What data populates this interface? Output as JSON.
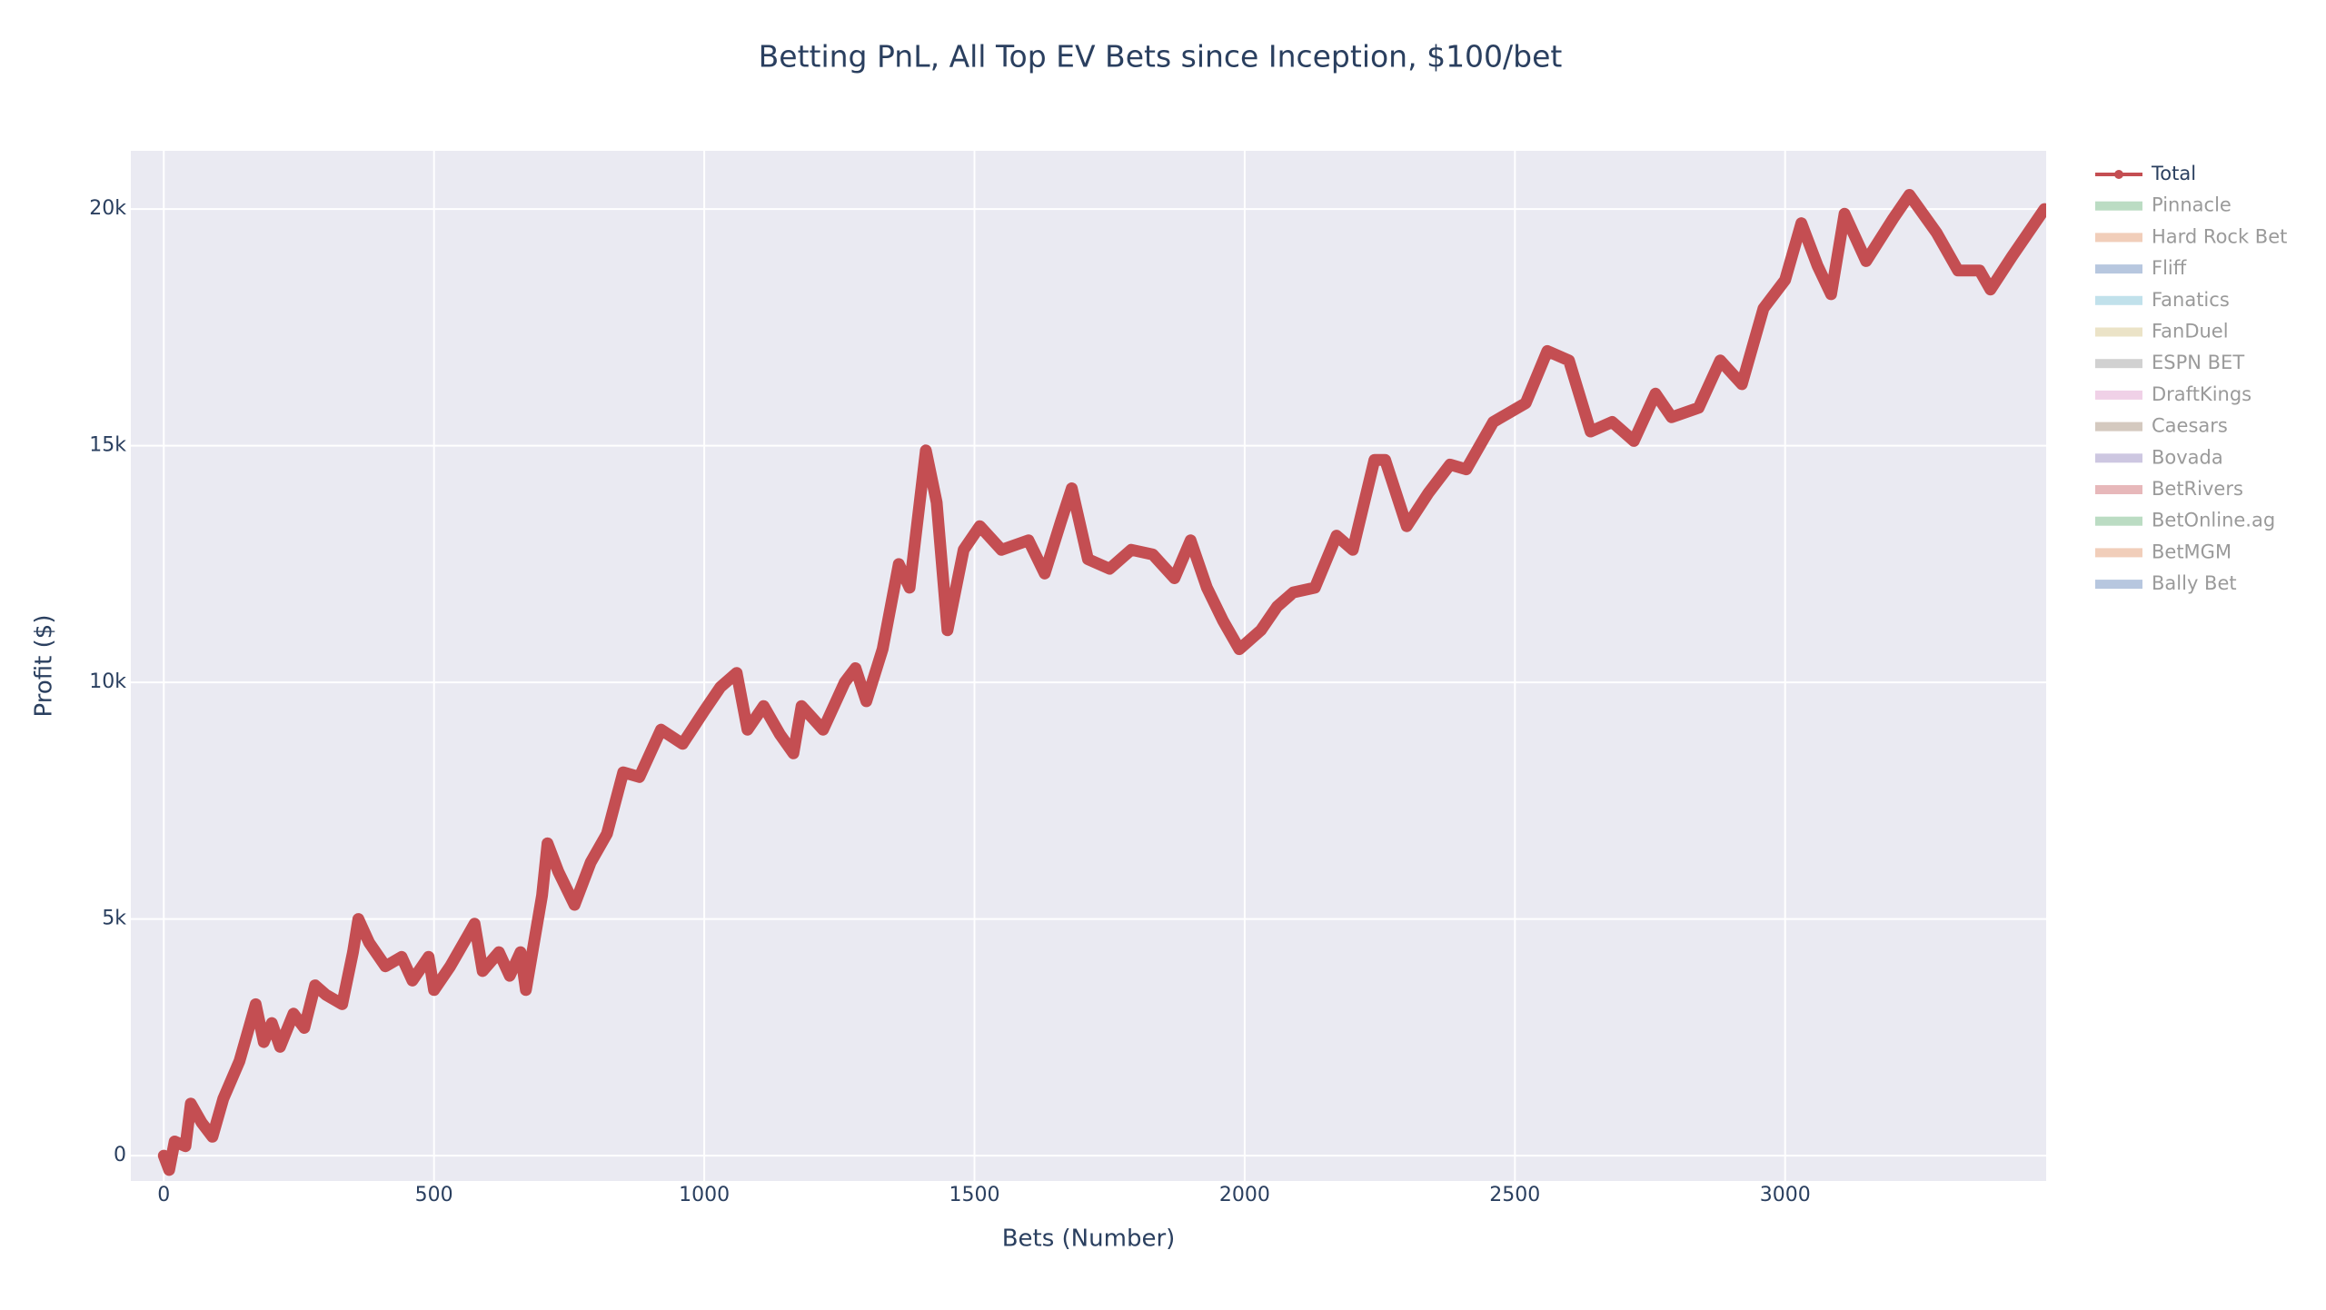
{
  "chart_data": {
    "type": "line",
    "title": "Betting PnL, All Top EV Bets since Inception, $100/bet",
    "x_label": "Bets (Number)",
    "y_label": "Profit ($)",
    "xlim": [
      -61,
      3483
    ],
    "ylim": [
      -535,
      21230
    ],
    "xticks": [
      0,
      500,
      1000,
      1500,
      2000,
      2500,
      3000
    ],
    "yticks": [
      0,
      {
        "value": 5000,
        "label": "5k"
      },
      {
        "value": 10000,
        "label": "10k"
      },
      {
        "value": 15000,
        "label": "15k"
      },
      {
        "value": 20000,
        "label": "20k"
      }
    ],
    "grid": true,
    "legend": "right",
    "series": [
      {
        "name": "Total",
        "color": "#c44e52",
        "x": [
          0,
          10,
          20,
          40,
          50,
          70,
          90,
          110,
          140,
          160,
          170,
          185,
          200,
          215,
          240,
          260,
          280,
          300,
          330,
          350,
          360,
          380,
          410,
          440,
          460,
          490,
          500,
          530,
          560,
          575,
          590,
          620,
          640,
          660,
          670,
          700,
          710,
          730,
          760,
          790,
          820,
          850,
          880,
          920,
          960,
          1000,
          1030,
          1060,
          1080,
          1110,
          1140,
          1165,
          1180,
          1220,
          1260,
          1280,
          1300,
          1330,
          1360,
          1380,
          1410,
          1430,
          1450,
          1480,
          1510,
          1550,
          1600,
          1630,
          1660,
          1680,
          1710,
          1750,
          1790,
          1830,
          1870,
          1900,
          1930,
          1960,
          1990,
          2030,
          2060,
          2090,
          2130,
          2170,
          2200,
          2240,
          2260,
          2300,
          2340,
          2380,
          2410,
          2460,
          2520,
          2560,
          2600,
          2640,
          2680,
          2720,
          2760,
          2790,
          2840,
          2880,
          2920,
          2960,
          3000,
          3030,
          3060,
          3085,
          3110,
          3150,
          3200,
          3230,
          3280,
          3320,
          3360,
          3380,
          3420,
          3450,
          3480
        ],
        "values": [
          0,
          -300,
          300,
          200,
          1100,
          700,
          400,
          1200,
          2000,
          2800,
          3200,
          2400,
          2800,
          2300,
          3000,
          2700,
          3600,
          3400,
          3200,
          4300,
          5000,
          4500,
          4000,
          4200,
          3700,
          4200,
          3500,
          4000,
          4600,
          4900,
          3900,
          4300,
          3800,
          4300,
          3500,
          5500,
          6600,
          6000,
          5300,
          6200,
          6800,
          8100,
          8000,
          9000,
          8700,
          9400,
          9900,
          10200,
          9000,
          9500,
          8900,
          8500,
          9500,
          9000,
          10000,
          10300,
          9600,
          10700,
          12500,
          12000,
          14900,
          13800,
          11100,
          12800,
          13300,
          12800,
          13000,
          12300,
          13400,
          14100,
          12600,
          12400,
          12800,
          12700,
          12200,
          13000,
          12000,
          11300,
          10700,
          11100,
          11600,
          11900,
          12000,
          13100,
          12800,
          14700,
          14700,
          13300,
          14000,
          14600,
          14500,
          15500,
          15900,
          17000,
          16800,
          15300,
          15500,
          15100,
          16100,
          15600,
          15800,
          16800,
          16300,
          17900,
          18500,
          19700,
          18800,
          18200,
          19900,
          18900,
          19800,
          20300,
          19500,
          18700,
          18700,
          18300,
          19000,
          19500,
          20000
        ]
      }
    ],
    "hidden_series": [
      {
        "name": "Pinnacle",
        "color": "#55a868"
      },
      {
        "name": "Hard Rock Bet",
        "color": "#dd8452"
      },
      {
        "name": "Fliff",
        "color": "#4c72b0"
      },
      {
        "name": "Fanatics",
        "color": "#64b5cd"
      },
      {
        "name": "FanDuel",
        "color": "#ccb974"
      },
      {
        "name": "ESPN BET",
        "color": "#8c8c8c"
      },
      {
        "name": "DraftKings",
        "color": "#da8bc3"
      },
      {
        "name": "Caesars",
        "color": "#937860"
      },
      {
        "name": "Bovada",
        "color": "#8172b3"
      },
      {
        "name": "BetRivers",
        "color": "#c44e52"
      },
      {
        "name": "BetOnline.ag",
        "color": "#55a868"
      },
      {
        "name": "BetMGM",
        "color": "#dd8452"
      },
      {
        "name": "Bally Bet",
        "color": "#4c72b0"
      }
    ]
  }
}
